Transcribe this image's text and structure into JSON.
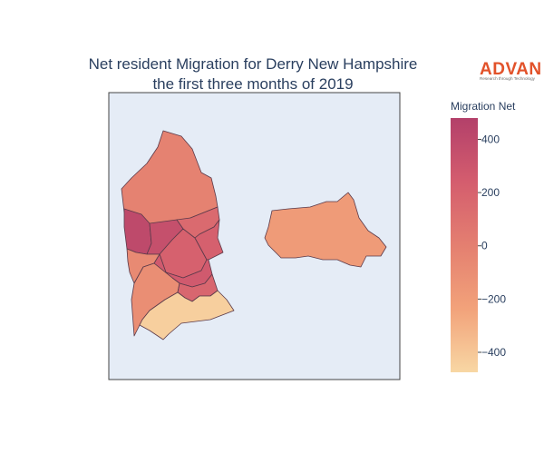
{
  "title": {
    "line1": "Net resident Migration for Derry New Hampshire",
    "line2": "the first three months of 2019"
  },
  "logo": {
    "name": "ADVAN",
    "tagline": "Research through Technology",
    "color": "#e2522a"
  },
  "map": {
    "background_color": "#e5ecf6",
    "border_color": "#444444"
  },
  "colorbar": {
    "title": "Migration Net",
    "range": [
      -475,
      480
    ],
    "ticks": [
      {
        "value": 400,
        "label": "400"
      },
      {
        "value": 200,
        "label": "200"
      },
      {
        "value": 0,
        "label": "0"
      },
      {
        "value": -200,
        "label": "−200"
      },
      {
        "value": -400,
        "label": "−400"
      }
    ],
    "colorscale": [
      "#f8d7a4",
      "#f2a27a",
      "#e47f70",
      "#d45d6e",
      "#b3406a"
    ]
  },
  "regions": [
    {
      "id": "north",
      "value": -20
    },
    {
      "id": "west-upper",
      "value": 400
    },
    {
      "id": "center-upper",
      "value": 350
    },
    {
      "id": "center",
      "value": 210
    },
    {
      "id": "east-upper",
      "value": 150
    },
    {
      "id": "east",
      "value": 220
    },
    {
      "id": "west-middle",
      "value": -70
    },
    {
      "id": "center-south",
      "value": 270
    },
    {
      "id": "southwest",
      "value": -100
    },
    {
      "id": "southeast-small",
      "value": 180
    },
    {
      "id": "south",
      "value": -440
    },
    {
      "id": "east-parcel",
      "value": -190
    }
  ]
}
